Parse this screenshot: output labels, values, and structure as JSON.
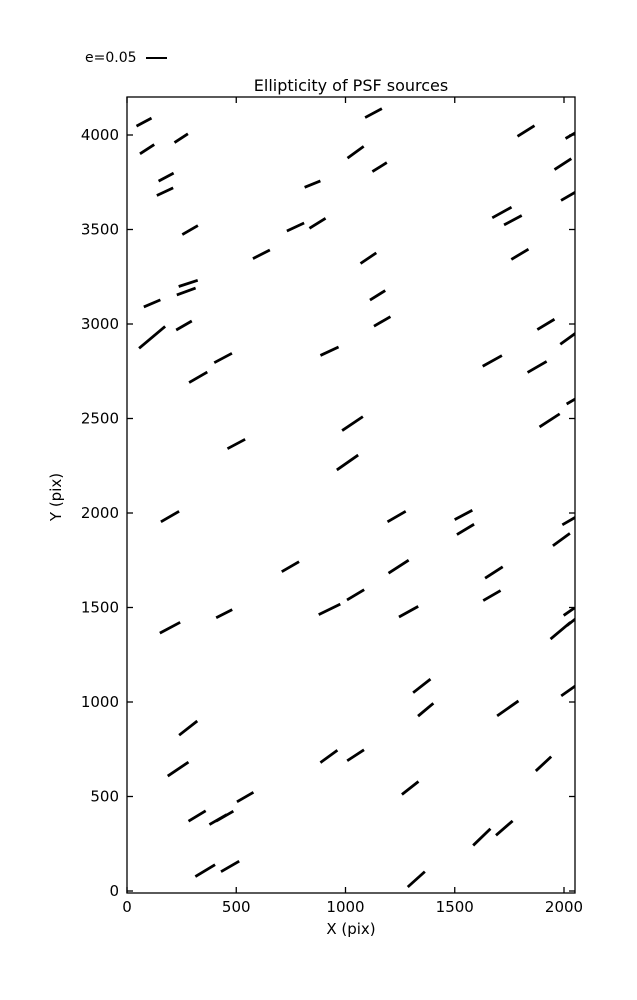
{
  "figure": {
    "background": "#ffffff",
    "foreground": "#000000"
  },
  "legend": {
    "label": "e=0.05"
  },
  "chart_data": {
    "type": "scatter",
    "marker": "line-segment-whisker",
    "title": "Ellipticity of PSF sources",
    "xlabel": "X (pix)",
    "ylabel": "Y (pix)",
    "xlim": [
      0,
      2050
    ],
    "ylim": [
      0,
      4200
    ],
    "xticks": [
      0,
      500,
      1000,
      1500,
      2000
    ],
    "yticks": [
      0,
      500,
      1000,
      1500,
      2000,
      2500,
      3000,
      3500,
      4000
    ],
    "grid": false,
    "legend_position": "upper-left-above-axes",
    "segment_color": "#000000",
    "segments_format": [
      "x_pix",
      "y_pix",
      "angle_deg_ccw",
      "length_screen_px"
    ],
    "segments": [
      [
        78,
        4068,
        28,
        17
      ],
      [
        92,
        3925,
        33,
        17
      ],
      [
        248,
        3983,
        33,
        16
      ],
      [
        179,
        3777,
        28,
        17
      ],
      [
        174,
        3700,
        25,
        18
      ],
      [
        849,
        3740,
        22,
        17
      ],
      [
        771,
        3513,
        25,
        19
      ],
      [
        872,
        3533,
        32,
        19
      ],
      [
        289,
        3497,
        30,
        18
      ],
      [
        615,
        3369,
        27,
        19
      ],
      [
        280,
        3215,
        18,
        20
      ],
      [
        271,
        3172,
        20,
        20
      ],
      [
        115,
        3109,
        23,
        18
      ],
      [
        261,
        2992,
        30,
        18
      ],
      [
        115,
        2929,
        40,
        34
      ],
      [
        927,
        2856,
        25,
        20
      ],
      [
        440,
        2820,
        28,
        20
      ],
      [
        326,
        2718,
        30,
        21
      ],
      [
        500,
        2365,
        28,
        20
      ],
      [
        1032,
        2473,
        34,
        25
      ],
      [
        1009,
        2267,
        35,
        26
      ],
      [
        1128,
        4116,
        28,
        19
      ],
      [
        1826,
        4021,
        32,
        20
      ],
      [
        2035,
        4000,
        30,
        14
      ],
      [
        1046,
        3909,
        36,
        20
      ],
      [
        1156,
        3830,
        32,
        17
      ],
      [
        1995,
        3846,
        33,
        20
      ],
      [
        2020,
        3676,
        30,
        17
      ],
      [
        1716,
        3590,
        29,
        22
      ],
      [
        1766,
        3549,
        28,
        20
      ],
      [
        1105,
        3348,
        34,
        19
      ],
      [
        1798,
        3369,
        31,
        20
      ],
      [
        1147,
        3152,
        32,
        18
      ],
      [
        1168,
        3014,
        30,
        19
      ],
      [
        1917,
        2998,
        31,
        20
      ],
      [
        2020,
        2924,
        36,
        20
      ],
      [
        1672,
        2805,
        29,
        22
      ],
      [
        1877,
        2773,
        30,
        22
      ],
      [
        2040,
        2595,
        30,
        14
      ],
      [
        1934,
        2490,
        33,
        24
      ],
      [
        197,
        1981,
        30,
        21
      ],
      [
        1234,
        1981,
        30,
        21
      ],
      [
        1540,
        1990,
        28,
        20
      ],
      [
        1549,
        1913,
        31,
        20
      ],
      [
        2026,
        1960,
        30,
        17
      ],
      [
        1988,
        1859,
        36,
        21
      ],
      [
        748,
        1716,
        30,
        20
      ],
      [
        1243,
        1716,
        33,
        24
      ],
      [
        1679,
        1685,
        33,
        21
      ],
      [
        1670,
        1563,
        30,
        20
      ],
      [
        927,
        1490,
        26,
        24
      ],
      [
        1046,
        1567,
        31,
        20
      ],
      [
        445,
        1467,
        27,
        18
      ],
      [
        197,
        1393,
        28,
        23
      ],
      [
        1289,
        1478,
        29,
        22
      ],
      [
        2023,
        1478,
        35,
        13
      ],
      [
        1984,
        1377,
        40,
        26
      ],
      [
        2035,
        1424,
        38,
        12
      ],
      [
        1349,
        1085,
        38,
        22
      ],
      [
        1367,
        959,
        40,
        20
      ],
      [
        1743,
        966,
        35,
        26
      ],
      [
        2021,
        1060,
        35,
        18
      ],
      [
        280,
        862,
        38,
        23
      ],
      [
        234,
        645,
        34,
        25
      ],
      [
        924,
        712,
        36,
        21
      ],
      [
        1046,
        718,
        33,
        20
      ],
      [
        1296,
        545,
        38,
        21
      ],
      [
        1906,
        673,
        43,
        21
      ],
      [
        1624,
        285,
        44,
        24
      ],
      [
        1727,
        333,
        41,
        22
      ],
      [
        417,
        378,
        30,
        20
      ],
      [
        447,
        396,
        30,
        20
      ],
      [
        321,
        397,
        31,
        20
      ],
      [
        541,
        497,
        30,
        19
      ],
      [
        358,
        108,
        31,
        23
      ],
      [
        472,
        130,
        30,
        21
      ],
      [
        1324,
        62,
        42,
        23
      ]
    ]
  }
}
